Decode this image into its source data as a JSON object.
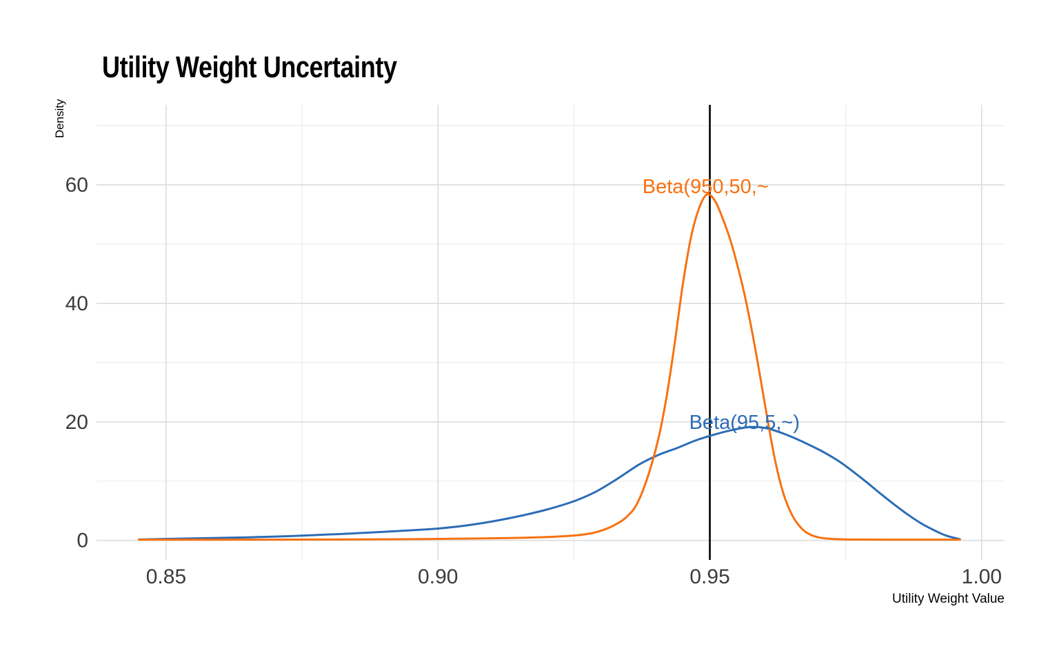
{
  "title": "Utility Weight Uncertainty",
  "chart_data": {
    "type": "line",
    "title": "Utility Weight Uncertainty",
    "xlabel": "Utility Weight Value",
    "ylabel": "Density",
    "xlim": [
      0.8372,
      1.0042
    ],
    "ylim": [
      -3.3,
      73.5
    ],
    "grid": {
      "major_color": "#DCDCDC",
      "minor_color": "#E9E9E9",
      "major_width": 1.6,
      "minor_width": 1.2
    },
    "x_ticks": {
      "values": [
        0.85,
        0.9,
        0.95,
        1.0
      ],
      "labels": [
        "0.85",
        "0.90",
        "0.95",
        "1.00"
      ],
      "minor": [
        0.875,
        0.925,
        0.975
      ]
    },
    "y_ticks": {
      "values": [
        0,
        20,
        40,
        60
      ],
      "labels": [
        "0",
        "20",
        "40",
        "60"
      ],
      "minor": [
        10,
        30,
        50,
        70
      ]
    },
    "vline": {
      "x": 0.95,
      "color": "#000000",
      "width": 2.6
    },
    "text_colors": {
      "tick": "#3C3C3C",
      "axis_title": "#000000"
    },
    "line_width": 3,
    "series": [
      {
        "name": "Beta(95,5,~)",
        "color": "#2B6CB5",
        "points": [
          [
            0.845,
            0.15
          ],
          [
            0.85,
            0.25
          ],
          [
            0.855,
            0.33
          ],
          [
            0.86,
            0.42
          ],
          [
            0.865,
            0.52
          ],
          [
            0.87,
            0.65
          ],
          [
            0.875,
            0.8
          ],
          [
            0.88,
            1.0
          ],
          [
            0.885,
            1.2
          ],
          [
            0.89,
            1.45
          ],
          [
            0.895,
            1.7
          ],
          [
            0.9,
            2.0
          ],
          [
            0.905,
            2.5
          ],
          [
            0.91,
            3.2
          ],
          [
            0.915,
            4.1
          ],
          [
            0.92,
            5.2
          ],
          [
            0.925,
            6.6
          ],
          [
            0.929,
            8.2
          ],
          [
            0.933,
            10.4
          ],
          [
            0.937,
            12.8
          ],
          [
            0.9405,
            14.4
          ],
          [
            0.944,
            15.6
          ],
          [
            0.9475,
            16.9
          ],
          [
            0.951,
            17.9
          ],
          [
            0.954,
            18.6
          ],
          [
            0.957,
            19.1
          ],
          [
            0.96,
            19.0
          ],
          [
            0.963,
            18.2
          ],
          [
            0.966,
            17.1
          ],
          [
            0.969,
            15.8
          ],
          [
            0.9715,
            14.6
          ],
          [
            0.974,
            13.2
          ],
          [
            0.9765,
            11.5
          ],
          [
            0.979,
            9.7
          ],
          [
            0.9815,
            7.8
          ],
          [
            0.984,
            6.0
          ],
          [
            0.9865,
            4.3
          ],
          [
            0.989,
            2.8
          ],
          [
            0.9915,
            1.6
          ],
          [
            0.9935,
            0.8
          ],
          [
            0.996,
            0.2
          ]
        ]
      },
      {
        "name": "Beta(950,50,~",
        "color": "#F87110",
        "points": [
          [
            0.845,
            0.12
          ],
          [
            0.86,
            0.12
          ],
          [
            0.88,
            0.15
          ],
          [
            0.895,
            0.2
          ],
          [
            0.905,
            0.3
          ],
          [
            0.913,
            0.4
          ],
          [
            0.918,
            0.5
          ],
          [
            0.922,
            0.65
          ],
          [
            0.9255,
            0.85
          ],
          [
            0.9285,
            1.25
          ],
          [
            0.9305,
            1.8
          ],
          [
            0.9325,
            2.6
          ],
          [
            0.9345,
            3.8
          ],
          [
            0.9365,
            6.0
          ],
          [
            0.9385,
            10.5
          ],
          [
            0.9405,
            17.0
          ],
          [
            0.942,
            24.0
          ],
          [
            0.9435,
            33.0
          ],
          [
            0.945,
            43.0
          ],
          [
            0.9465,
            51.0
          ],
          [
            0.948,
            56.0
          ],
          [
            0.9495,
            58.4
          ],
          [
            0.951,
            57.2
          ],
          [
            0.9525,
            54.0
          ],
          [
            0.954,
            50.0
          ],
          [
            0.956,
            43.0
          ],
          [
            0.9575,
            36.5
          ],
          [
            0.959,
            29.0
          ],
          [
            0.9605,
            21.0
          ],
          [
            0.962,
            13.5
          ],
          [
            0.9635,
            8.0
          ],
          [
            0.965,
            4.5
          ],
          [
            0.9665,
            2.4
          ],
          [
            0.968,
            1.2
          ],
          [
            0.97,
            0.5
          ],
          [
            0.9725,
            0.25
          ],
          [
            0.976,
            0.15
          ],
          [
            0.982,
            0.12
          ],
          [
            0.99,
            0.12
          ],
          [
            0.996,
            0.12
          ]
        ]
      }
    ],
    "annotations": [
      {
        "text": "Beta(950,50,~",
        "x": 0.9376,
        "y": 58.6,
        "color": "#F87110"
      },
      {
        "text": "Beta(95,5,~)",
        "x": 0.9462,
        "y": 18.8,
        "color": "#2B6CB5"
      }
    ]
  }
}
